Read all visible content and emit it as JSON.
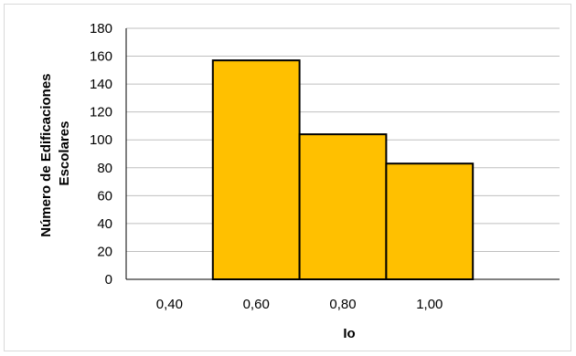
{
  "chart_data": {
    "type": "bar",
    "title": "",
    "xlabel": "Io",
    "ylabel_lines": [
      "Número de Edificaciones",
      "Escolares"
    ],
    "categories": [
      "0,40",
      "0,60",
      "0,80",
      "1,00",
      ""
    ],
    "values": [
      0,
      157,
      104,
      83,
      0
    ],
    "ylim": [
      0,
      180
    ],
    "yticks": [
      "0",
      "20",
      "40",
      "60",
      "80",
      "100",
      "120",
      "140",
      "160",
      "180"
    ],
    "grid": true,
    "legend": "none",
    "bar_color": "#FFC000",
    "bar_edge_color": "#000000",
    "grid_color": "#bfbfbf"
  }
}
